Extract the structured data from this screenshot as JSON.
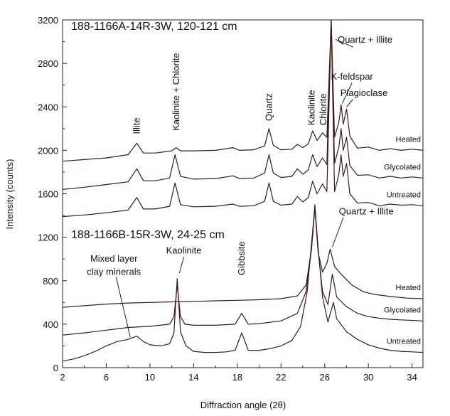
{
  "chart_data": {
    "type": "line",
    "xlabel": "Diffraction angle (2θ)",
    "ylabel": "Intensity (counts)",
    "xlim": [
      2,
      35
    ],
    "ylim": [
      0,
      3200
    ],
    "x_ticks": [
      "2",
      "6",
      "10",
      "14",
      "18",
      "22",
      "26",
      "30",
      "34"
    ],
    "y_ticks": [
      "0",
      "400",
      "800",
      "1200",
      "1600",
      "2000",
      "2400",
      "2800",
      "3200"
    ],
    "grid": false,
    "line_color": "#3a1a1a",
    "panels": [
      {
        "title": "188-1166A-14R-3W, 120-121 cm",
        "series": [
          {
            "name": "Heated",
            "points": [
              [
                2,
                1900
              ],
              [
                4,
                1915
              ],
              [
                6,
                1930
              ],
              [
                8,
                1960
              ],
              [
                8.8,
                2065
              ],
              [
                9.4,
                1975
              ],
              [
                10.5,
                1975
              ],
              [
                12.0,
                1995
              ],
              [
                12.4,
                2025
              ],
              [
                12.8,
                1995
              ],
              [
                14,
                1995
              ],
              [
                16,
                2000
              ],
              [
                17.6,
                2025
              ],
              [
                18.2,
                2000
              ],
              [
                19.5,
                2005
              ],
              [
                20.5,
                2040
              ],
              [
                20.9,
                2200
              ],
              [
                21.3,
                2045
              ],
              [
                22,
                2005
              ],
              [
                23.0,
                2010
              ],
              [
                23.5,
                2055
              ],
              [
                24,
                2025
              ],
              [
                24.5,
                2060
              ],
              [
                24.9,
                2180
              ],
              [
                25.3,
                2090
              ],
              [
                25.8,
                2160
              ],
              [
                26.2,
                2120
              ],
              [
                26.6,
                3200
              ],
              [
                26.9,
                2120
              ],
              [
                27.3,
                2260
              ],
              [
                27.5,
                2420
              ],
              [
                27.7,
                2240
              ],
              [
                28.0,
                2380
              ],
              [
                28.3,
                2130
              ],
              [
                29,
                2020
              ],
              [
                30,
                2030
              ],
              [
                31,
                2000
              ],
              [
                32,
                2015
              ],
              [
                33,
                2000
              ],
              [
                34,
                2010
              ],
              [
                35,
                2000
              ]
            ]
          },
          {
            "name": "Glycolated",
            "points": [
              [
                2,
                1640
              ],
              [
                4,
                1660
              ],
              [
                6,
                1685
              ],
              [
                8,
                1710
              ],
              [
                8.8,
                1830
              ],
              [
                9.4,
                1720
              ],
              [
                10.5,
                1720
              ],
              [
                11.8,
                1745
              ],
              [
                12.3,
                1960
              ],
              [
                12.8,
                1760
              ],
              [
                14,
                1735
              ],
              [
                16,
                1740
              ],
              [
                17.6,
                1765
              ],
              [
                18.2,
                1740
              ],
              [
                19.5,
                1745
              ],
              [
                20.5,
                1790
              ],
              [
                20.9,
                1960
              ],
              [
                21.3,
                1790
              ],
              [
                22,
                1750
              ],
              [
                23.0,
                1760
              ],
              [
                23.5,
                1830
              ],
              [
                24,
                1780
              ],
              [
                24.5,
                1820
              ],
              [
                24.9,
                1960
              ],
              [
                25.3,
                1850
              ],
              [
                25.8,
                1930
              ],
              [
                26.2,
                1870
              ],
              [
                26.6,
                3200
              ],
              [
                26.9,
                1880
              ],
              [
                27.3,
                2030
              ],
              [
                27.5,
                2200
              ],
              [
                27.7,
                2000
              ],
              [
                28.0,
                2120
              ],
              [
                28.3,
                1860
              ],
              [
                29,
                1770
              ],
              [
                30,
                1775
              ],
              [
                31,
                1745
              ],
              [
                32,
                1760
              ],
              [
                33,
                1745
              ],
              [
                34,
                1755
              ],
              [
                35,
                1745
              ]
            ]
          },
          {
            "name": "Untreated",
            "points": [
              [
                2,
                1390
              ],
              [
                4,
                1405
              ],
              [
                6,
                1425
              ],
              [
                8,
                1450
              ],
              [
                8.8,
                1565
              ],
              [
                9.4,
                1460
              ],
              [
                10.5,
                1460
              ],
              [
                11.8,
                1485
              ],
              [
                12.3,
                1700
              ],
              [
                12.8,
                1500
              ],
              [
                14,
                1480
              ],
              [
                16,
                1485
              ],
              [
                17.6,
                1505
              ],
              [
                18.2,
                1485
              ],
              [
                19.5,
                1490
              ],
              [
                20.5,
                1530
              ],
              [
                20.9,
                1700
              ],
              [
                21.3,
                1530
              ],
              [
                22,
                1495
              ],
              [
                23.0,
                1505
              ],
              [
                23.5,
                1575
              ],
              [
                24,
                1525
              ],
              [
                24.5,
                1565
              ],
              [
                24.9,
                1715
              ],
              [
                25.3,
                1600
              ],
              [
                25.8,
                1690
              ],
              [
                26.2,
                1620
              ],
              [
                26.6,
                3200
              ],
              [
                26.9,
                1620
              ],
              [
                27.3,
                1780
              ],
              [
                27.5,
                1960
              ],
              [
                27.7,
                1760
              ],
              [
                28.0,
                1880
              ],
              [
                28.3,
                1600
              ],
              [
                29,
                1515
              ],
              [
                30,
                1520
              ],
              [
                31,
                1490
              ],
              [
                32,
                1505
              ],
              [
                33,
                1495
              ],
              [
                34,
                1500
              ],
              [
                35,
                1490
              ]
            ]
          }
        ]
      },
      {
        "title": "188-1166B-15R-3W, 24-25 cm",
        "series": [
          {
            "name": "Heated",
            "points": [
              [
                2,
                555
              ],
              [
                4,
                570
              ],
              [
                6,
                585
              ],
              [
                8,
                595
              ],
              [
                10,
                600
              ],
              [
                12,
                605
              ],
              [
                14,
                610
              ],
              [
                16,
                615
              ],
              [
                18,
                620
              ],
              [
                20,
                625
              ],
              [
                22,
                635
              ],
              [
                23.5,
                660
              ],
              [
                24.3,
                760
              ],
              [
                24.8,
                1100
              ],
              [
                25.1,
                1470
              ],
              [
                25.4,
                1060
              ],
              [
                25.8,
                880
              ],
              [
                26.2,
                960
              ],
              [
                26.5,
                1090
              ],
              [
                26.9,
                930
              ],
              [
                27.5,
                860
              ],
              [
                28.5,
                760
              ],
              [
                29.5,
                700
              ],
              [
                30.5,
                675
              ],
              [
                32,
                655
              ],
              [
                33.5,
                640
              ],
              [
                35,
                635
              ]
            ]
          },
          {
            "name": "Glycolated",
            "points": [
              [
                2,
                300
              ],
              [
                4,
                320
              ],
              [
                6,
                345
              ],
              [
                8,
                370
              ],
              [
                10,
                380
              ],
              [
                11.8,
                400
              ],
              [
                12.2,
                470
              ],
              [
                12.5,
                760
              ],
              [
                12.8,
                470
              ],
              [
                13.2,
                400
              ],
              [
                14,
                390
              ],
              [
                16,
                390
              ],
              [
                17.8,
                400
              ],
              [
                18.4,
                500
              ],
              [
                19.0,
                400
              ],
              [
                20,
                405
              ],
              [
                22,
                430
              ],
              [
                23.5,
                500
              ],
              [
                24.3,
                700
              ],
              [
                24.8,
                1100
              ],
              [
                25.1,
                1500
              ],
              [
                25.4,
                1080
              ],
              [
                25.8,
                700
              ],
              [
                26.3,
                580
              ],
              [
                26.7,
                860
              ],
              [
                27.1,
                650
              ],
              [
                28,
                560
              ],
              [
                29,
                500
              ],
              [
                30,
                470
              ],
              [
                31,
                455
              ],
              [
                32,
                445
              ],
              [
                33,
                440
              ],
              [
                35,
                430
              ]
            ]
          },
          {
            "name": "Untreated",
            "points": [
              [
                2,
                60
              ],
              [
                3,
                80
              ],
              [
                4,
                110
              ],
              [
                5,
                150
              ],
              [
                6,
                200
              ],
              [
                7,
                240
              ],
              [
                8,
                260
              ],
              [
                8.8,
                290
              ],
              [
                9.4,
                240
              ],
              [
                10,
                210
              ],
              [
                11,
                200
              ],
              [
                11.8,
                220
              ],
              [
                12.2,
                320
              ],
              [
                12.5,
                820
              ],
              [
                12.8,
                330
              ],
              [
                13.3,
                200
              ],
              [
                14,
                150
              ],
              [
                15,
                140
              ],
              [
                16,
                140
              ],
              [
                17,
                145
              ],
              [
                17.8,
                160
              ],
              [
                18.4,
                320
              ],
              [
                19.0,
                160
              ],
              [
                20,
                160
              ],
              [
                21,
                175
              ],
              [
                22,
                200
              ],
              [
                23,
                250
              ],
              [
                23.8,
                380
              ],
              [
                24.4,
                700
              ],
              [
                24.8,
                1150
              ],
              [
                25.1,
                1480
              ],
              [
                25.4,
                1100
              ],
              [
                25.8,
                650
              ],
              [
                26.3,
                420
              ],
              [
                26.8,
                600
              ],
              [
                27.1,
                450
              ],
              [
                28,
                330
              ],
              [
                29,
                260
              ],
              [
                30,
                210
              ],
              [
                31,
                180
              ],
              [
                32,
                160
              ],
              [
                33,
                150
              ],
              [
                34,
                145
              ],
              [
                35,
                140
              ]
            ]
          }
        ]
      }
    ],
    "peak_labels": [
      {
        "text": "Illite",
        "x": 8.8,
        "y": 2150,
        "rotate": true
      },
      {
        "text": "Kaolinite + Chlorite",
        "x": 12.4,
        "y": 2180,
        "rotate": true
      },
      {
        "text": "Quartz",
        "x": 20.9,
        "y": 2270,
        "rotate": true
      },
      {
        "text": "Kaolinite",
        "x": 24.8,
        "y": 2230,
        "rotate": true
      },
      {
        "text": "Chlorite",
        "x": 25.9,
        "y": 2230,
        "rotate": true
      },
      {
        "text": "Quartz + Illite",
        "x": 29.7,
        "y": 2990,
        "rotate": false
      },
      {
        "text": "K-feldspar",
        "x": 28.5,
        "y": 2650,
        "rotate": false
      },
      {
        "text": "Plagioclase",
        "x": 29.6,
        "y": 2500,
        "rotate": false
      },
      {
        "text": "Kaolinite",
        "x": 13.1,
        "y": 1050,
        "rotate": false
      },
      {
        "text": "Gibbsite",
        "x": 18.4,
        "y": 850,
        "rotate": true
      },
      {
        "text": "Quartz + Illite",
        "x": 29.8,
        "y": 1410,
        "rotate": false
      },
      {
        "text": "Mixed layer",
        "x": 6.7,
        "y": 975,
        "rotate": false
      },
      {
        "text": "clay minerals",
        "x": 6.7,
        "y": 855,
        "rotate": false
      }
    ]
  }
}
